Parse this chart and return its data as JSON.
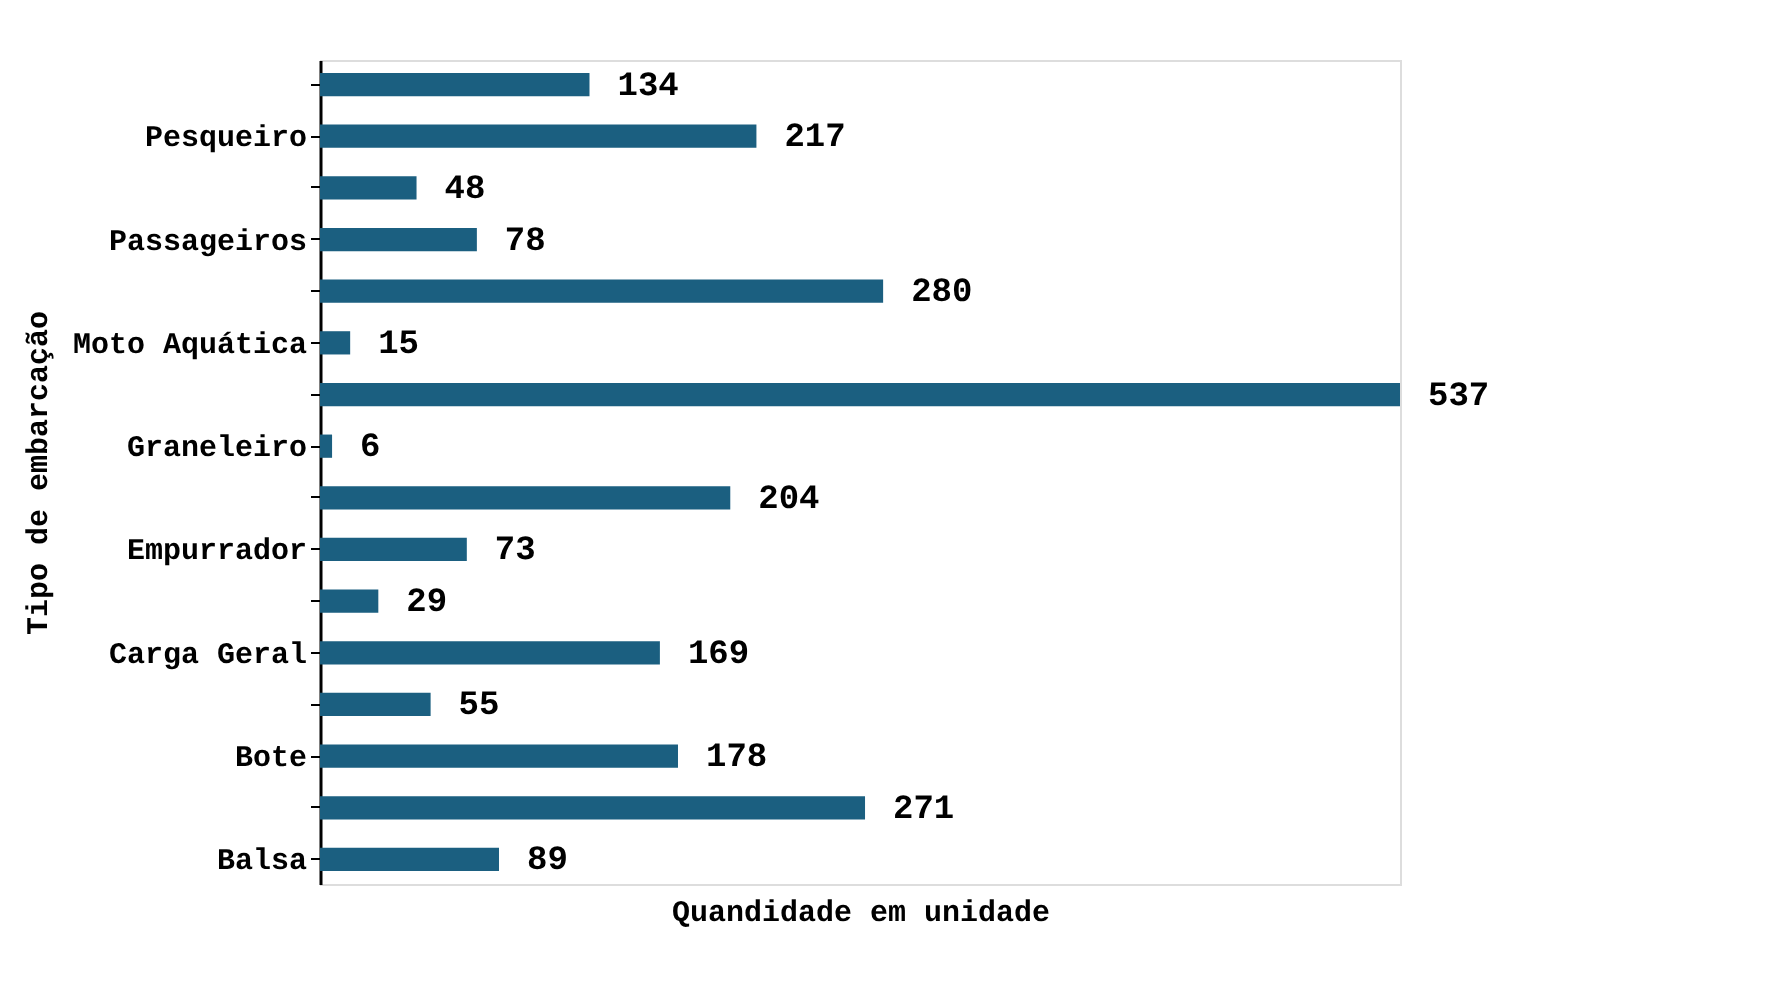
{
  "chart_data": {
    "type": "bar",
    "orientation": "horizontal",
    "xlabel": "Quandidade em unidade",
    "ylabel": "Tipo de embarcação",
    "categories": [
      null,
      "Pesqueiro",
      null,
      "Passageiros",
      null,
      "Moto Aquática",
      null,
      "Graneleiro",
      null,
      "Empurrador",
      null,
      "Carga Geral",
      null,
      "Bote",
      null,
      "Balsa"
    ],
    "values": [
      134,
      217,
      48,
      78,
      280,
      15,
      537,
      6,
      204,
      73,
      29,
      169,
      55,
      178,
      271,
      89
    ],
    "color": "#1b5f80",
    "data_labels": true,
    "grid": false
  }
}
